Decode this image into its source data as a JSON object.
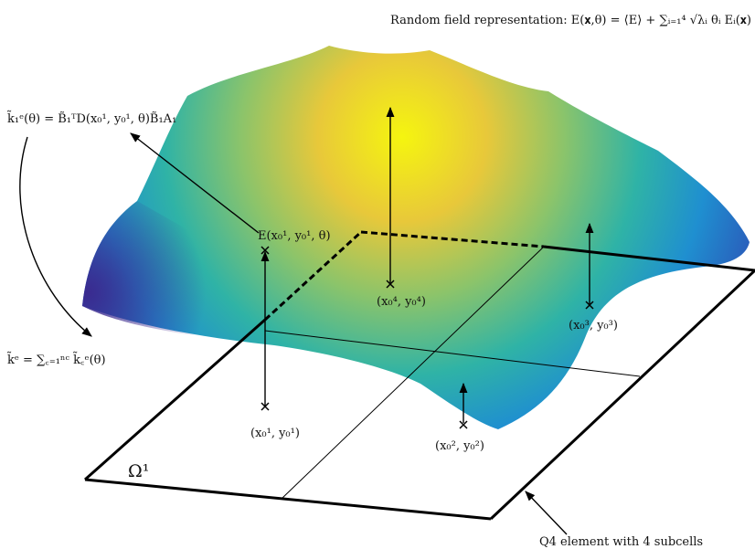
{
  "title": "Random field representation: E(𝐱,θ) = ⟨E⟩ + ∑ᵢ₌₁⁴ √λᵢ θᵢ Eᵢ(𝐱)",
  "element_stiffness": "k̃₁ᵉ(θ) = B̃₁ᵀD(x₀¹, y₀¹, θ)B̃₁A₁",
  "assembled_stiffness": "k̃ᵉ = ∑꜀₌₁ⁿᶜ k̃꜀ᵉ(θ)",
  "field_value": "E(x₀¹, y₀¹, θ)",
  "points": [
    {
      "label": "(x₀¹, y₀¹)"
    },
    {
      "label": "(x₀², y₀²)"
    },
    {
      "label": "(x₀³, y₀³)"
    },
    {
      "label": "(x₀⁴, y₀⁴)"
    }
  ],
  "domain_label": "Ω¹",
  "element_note": "Q4 element with 4 subcells"
}
